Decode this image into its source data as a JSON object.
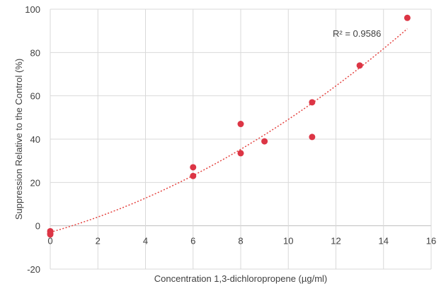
{
  "chart_data": {
    "type": "scatter",
    "title": "",
    "xlabel": "Concentration 1,3-dichloropropene (µg/ml)",
    "ylabel": "Suppression Relative to the Control (%)",
    "xlim": [
      0,
      16
    ],
    "ylim": [
      -20,
      100
    ],
    "xticks": [
      0,
      2,
      4,
      6,
      8,
      10,
      12,
      14,
      16
    ],
    "yticks": [
      -20,
      0,
      20,
      40,
      60,
      80,
      100
    ],
    "grid": true,
    "marker_color": "#dc3545",
    "trendline_color": "#e4423f",
    "points": [
      {
        "x": 0,
        "y": -2.5
      },
      {
        "x": 0,
        "y": -3.5
      },
      {
        "x": 0,
        "y": -4.0
      },
      {
        "x": 6,
        "y": 27
      },
      {
        "x": 6,
        "y": 23
      },
      {
        "x": 8,
        "y": 47
      },
      {
        "x": 8,
        "y": 33.5
      },
      {
        "x": 9,
        "y": 39
      },
      {
        "x": 11,
        "y": 57
      },
      {
        "x": 11,
        "y": 41
      },
      {
        "x": 13,
        "y": 74
      },
      {
        "x": 15,
        "y": 96
      }
    ],
    "trendline": {
      "type": "polynomial",
      "coefficients": [
        -3,
        3.1,
        0.211
      ],
      "x_range": [
        0,
        15
      ]
    },
    "annotation": "R² = 0.9586"
  }
}
